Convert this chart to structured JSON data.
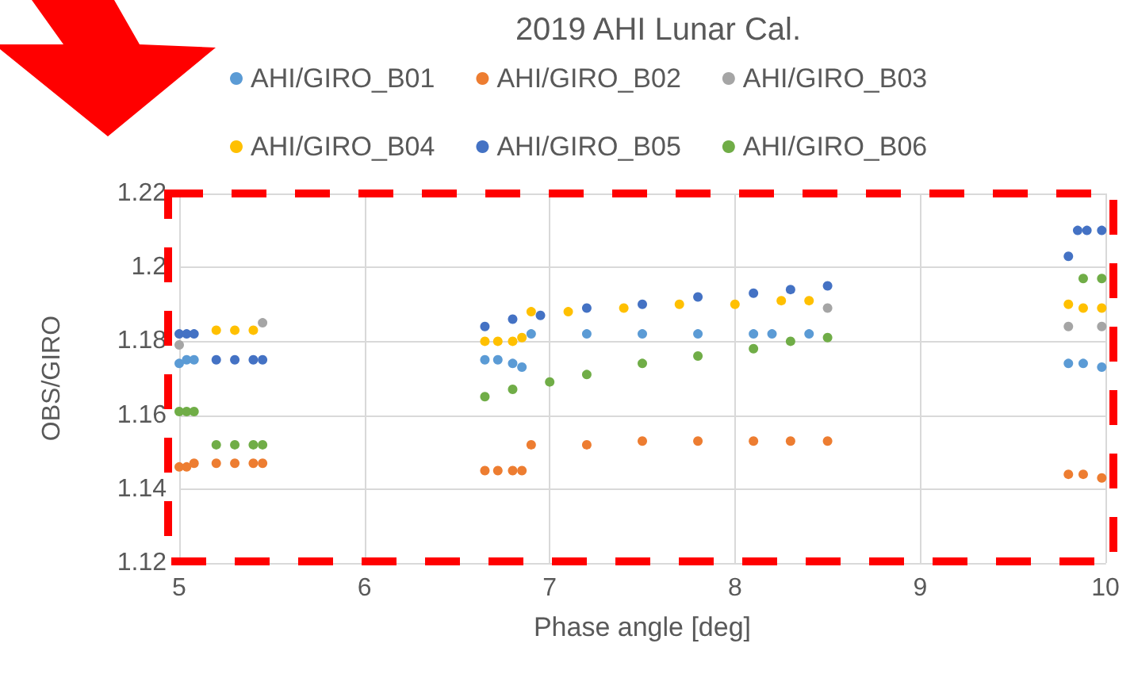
{
  "chart_data": {
    "type": "scatter",
    "title": "2019 AHI Lunar Cal.",
    "xlabel": "Phase angle [deg]",
    "ylabel": "OBS/GIRO",
    "xlim": [
      5,
      10
    ],
    "xticks": [
      5,
      6,
      7,
      8,
      9,
      10
    ],
    "ylim": [
      1.12,
      1.22
    ],
    "yticks": [
      1.12,
      1.14,
      1.16,
      1.18,
      1.2,
      1.22
    ],
    "grid": true,
    "legend": "top",
    "marker": "circle",
    "series": [
      {
        "name": "AHI/GIRO_B01",
        "color": "#5b9bd5",
        "x": [
          5.0,
          5.04,
          5.08,
          6.65,
          6.72,
          6.8,
          6.85,
          6.9,
          7.2,
          7.5,
          7.8,
          8.1,
          8.2,
          8.4,
          9.8,
          9.88,
          9.98
        ],
        "values": [
          1.174,
          1.175,
          1.175,
          1.175,
          1.175,
          1.174,
          1.173,
          1.182,
          1.182,
          1.182,
          1.182,
          1.182,
          1.182,
          1.182,
          1.174,
          1.174,
          1.173
        ]
      },
      {
        "name": "AHI/GIRO_B02",
        "color": "#ed7d31",
        "x": [
          5.0,
          5.04,
          5.08,
          5.2,
          5.3,
          5.4,
          5.45,
          6.65,
          6.72,
          6.8,
          6.85,
          6.9,
          7.2,
          7.5,
          7.8,
          8.1,
          8.3,
          8.5,
          9.8,
          9.88,
          9.98
        ],
        "values": [
          1.146,
          1.146,
          1.147,
          1.147,
          1.147,
          1.147,
          1.147,
          1.145,
          1.145,
          1.145,
          1.145,
          1.152,
          1.152,
          1.153,
          1.153,
          1.153,
          1.153,
          1.153,
          1.144,
          1.144,
          1.143
        ]
      },
      {
        "name": "AHI/GIRO_B03",
        "color": "#a5a5a5",
        "x": [
          5.0,
          5.45,
          8.5,
          9.8,
          9.98
        ],
        "values": [
          1.179,
          1.185,
          1.189,
          1.184,
          1.184
        ]
      },
      {
        "name": "AHI/GIRO_B04",
        "color": "#ffc000",
        "x": [
          5.2,
          5.3,
          5.4,
          6.65,
          6.72,
          6.8,
          6.85,
          6.9,
          7.1,
          7.4,
          7.7,
          8.0,
          8.25,
          8.4,
          9.8,
          9.88,
          9.98
        ],
        "values": [
          1.183,
          1.183,
          1.183,
          1.18,
          1.18,
          1.18,
          1.181,
          1.188,
          1.188,
          1.189,
          1.19,
          1.19,
          1.191,
          1.191,
          1.19,
          1.189,
          1.189
        ]
      },
      {
        "name": "AHI/GIRO_B05",
        "color": "#4472c4",
        "x": [
          5.0,
          5.04,
          5.08,
          5.2,
          5.3,
          5.4,
          5.45,
          6.65,
          6.8,
          6.95,
          7.2,
          7.5,
          7.8,
          8.1,
          8.3,
          8.5,
          9.8,
          9.85,
          9.9,
          9.98
        ],
        "values": [
          1.182,
          1.182,
          1.182,
          1.175,
          1.175,
          1.175,
          1.175,
          1.184,
          1.186,
          1.187,
          1.189,
          1.19,
          1.192,
          1.193,
          1.194,
          1.195,
          1.203,
          1.21,
          1.21,
          1.21
        ]
      },
      {
        "name": "AHI/GIRO_B06",
        "color": "#70ad47",
        "x": [
          5.0,
          5.04,
          5.08,
          5.2,
          5.3,
          5.4,
          5.45,
          6.65,
          6.8,
          7.0,
          7.2,
          7.5,
          7.8,
          8.1,
          8.3,
          8.5,
          9.88,
          9.98
        ],
        "values": [
          1.161,
          1.161,
          1.161,
          1.152,
          1.152,
          1.152,
          1.152,
          1.165,
          1.167,
          1.169,
          1.171,
          1.174,
          1.176,
          1.178,
          1.18,
          1.181,
          1.197,
          1.197
        ]
      }
    ]
  }
}
